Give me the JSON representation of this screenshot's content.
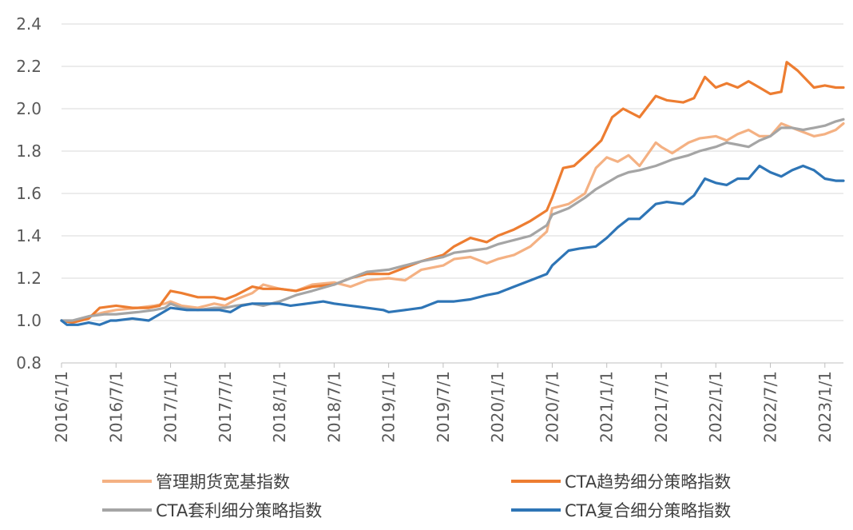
{
  "chart_data": {
    "type": "line",
    "title": "",
    "xlabel": "",
    "ylabel": "",
    "ylim": [
      0.8,
      2.4
    ],
    "yticks": [
      "0.8",
      "1.0",
      "1.2",
      "1.4",
      "1.6",
      "1.8",
      "2.0",
      "2.2",
      "2.4"
    ],
    "ytick_values": [
      0.8,
      1.0,
      1.2,
      1.4,
      1.6,
      1.8,
      2.0,
      2.2,
      2.4
    ],
    "xlim": [
      2016.0,
      2023.17
    ],
    "xticks": [
      "2016/1/1",
      "2016/7/1",
      "2017/1/1",
      "2017/7/1",
      "2018/1/1",
      "2018/7/1",
      "2019/1/1",
      "2019/7/1",
      "2020/1/1",
      "2020/7/1",
      "2021/1/1",
      "2021/7/1",
      "2022/1/1",
      "2022/7/1",
      "2023/1/1"
    ],
    "xtick_values": [
      2016.0,
      2016.5,
      2017.0,
      2017.5,
      2018.0,
      2018.5,
      2019.0,
      2019.5,
      2020.0,
      2020.5,
      2021.0,
      2021.5,
      2022.0,
      2022.5,
      2023.0
    ],
    "grid": "horizontal",
    "legend_position": "bottom",
    "series": [
      {
        "name": "管理期货宽基指数",
        "color": "#F4B183",
        "x": [
          2016.0,
          2016.1,
          2016.25,
          2016.4,
          2016.5,
          2016.7,
          2016.85,
          2016.95,
          2017.0,
          2017.1,
          2017.25,
          2017.4,
          2017.5,
          2017.6,
          2017.75,
          2017.85,
          2018.0,
          2018.15,
          2018.3,
          2018.5,
          2018.65,
          2018.8,
          2019.0,
          2019.15,
          2019.3,
          2019.5,
          2019.6,
          2019.75,
          2019.9,
          2020.0,
          2020.15,
          2020.3,
          2020.45,
          2020.5,
          2020.65,
          2020.8,
          2020.9,
          2021.0,
          2021.1,
          2021.2,
          2021.3,
          2021.45,
          2021.5,
          2021.6,
          2021.75,
          2021.85,
          2022.0,
          2022.1,
          2022.2,
          2022.3,
          2022.4,
          2022.5,
          2022.6,
          2022.7,
          2022.8,
          2022.9,
          2023.0,
          2023.1,
          2023.17
        ],
        "values": [
          1.0,
          0.99,
          1.02,
          1.04,
          1.05,
          1.06,
          1.07,
          1.08,
          1.09,
          1.07,
          1.06,
          1.08,
          1.07,
          1.1,
          1.13,
          1.17,
          1.15,
          1.14,
          1.17,
          1.18,
          1.16,
          1.19,
          1.2,
          1.19,
          1.24,
          1.26,
          1.29,
          1.3,
          1.27,
          1.29,
          1.31,
          1.35,
          1.42,
          1.53,
          1.55,
          1.6,
          1.72,
          1.77,
          1.75,
          1.78,
          1.73,
          1.84,
          1.82,
          1.79,
          1.84,
          1.86,
          1.87,
          1.85,
          1.88,
          1.9,
          1.87,
          1.87,
          1.93,
          1.91,
          1.89,
          1.87,
          1.88,
          1.9,
          1.93
        ]
      },
      {
        "name": "CTA趋势细分策略指数",
        "color": "#ED7D31",
        "x": [
          2016.0,
          2016.1,
          2016.25,
          2016.35,
          2016.5,
          2016.65,
          2016.8,
          2016.9,
          2017.0,
          2017.1,
          2017.25,
          2017.4,
          2017.5,
          2017.6,
          2017.75,
          2017.85,
          2018.0,
          2018.15,
          2018.3,
          2018.5,
          2018.65,
          2018.8,
          2019.0,
          2019.15,
          2019.3,
          2019.5,
          2019.6,
          2019.75,
          2019.9,
          2020.0,
          2020.15,
          2020.3,
          2020.45,
          2020.5,
          2020.6,
          2020.7,
          2020.85,
          2020.95,
          2021.05,
          2021.15,
          2021.3,
          2021.45,
          2021.55,
          2021.7,
          2021.8,
          2021.9,
          2022.0,
          2022.1,
          2022.2,
          2022.3,
          2022.4,
          2022.5,
          2022.6,
          2022.65,
          2022.75,
          2022.9,
          2023.0,
          2023.1,
          2023.17
        ],
        "values": [
          1.0,
          0.99,
          1.01,
          1.06,
          1.07,
          1.06,
          1.06,
          1.07,
          1.14,
          1.13,
          1.11,
          1.11,
          1.1,
          1.12,
          1.16,
          1.15,
          1.15,
          1.14,
          1.16,
          1.17,
          1.2,
          1.22,
          1.22,
          1.25,
          1.28,
          1.31,
          1.35,
          1.39,
          1.37,
          1.4,
          1.43,
          1.47,
          1.52,
          1.58,
          1.72,
          1.73,
          1.8,
          1.85,
          1.96,
          2.0,
          1.96,
          2.06,
          2.04,
          2.03,
          2.05,
          2.15,
          2.1,
          2.12,
          2.1,
          2.13,
          2.1,
          2.07,
          2.08,
          2.22,
          2.18,
          2.1,
          2.11,
          2.1,
          2.1
        ]
      },
      {
        "name": "CTA套利细分策略指数",
        "color": "#A5A5A5",
        "x": [
          2016.0,
          2016.1,
          2016.25,
          2016.4,
          2016.5,
          2016.7,
          2016.85,
          2016.95,
          2017.0,
          2017.1,
          2017.25,
          2017.4,
          2017.5,
          2017.6,
          2017.75,
          2017.85,
          2018.0,
          2018.15,
          2018.3,
          2018.5,
          2018.65,
          2018.8,
          2019.0,
          2019.15,
          2019.3,
          2019.5,
          2019.6,
          2019.75,
          2019.9,
          2020.0,
          2020.15,
          2020.3,
          2020.45,
          2020.5,
          2020.65,
          2020.8,
          2020.9,
          2021.0,
          2021.1,
          2021.2,
          2021.3,
          2021.45,
          2021.5,
          2021.6,
          2021.75,
          2021.85,
          2022.0,
          2022.1,
          2022.2,
          2022.3,
          2022.4,
          2022.5,
          2022.6,
          2022.7,
          2022.8,
          2022.9,
          2023.0,
          2023.1,
          2023.17
        ],
        "values": [
          1.0,
          1.0,
          1.02,
          1.03,
          1.03,
          1.04,
          1.05,
          1.06,
          1.08,
          1.06,
          1.05,
          1.06,
          1.06,
          1.07,
          1.08,
          1.07,
          1.09,
          1.12,
          1.14,
          1.17,
          1.2,
          1.23,
          1.24,
          1.26,
          1.28,
          1.3,
          1.32,
          1.33,
          1.34,
          1.36,
          1.38,
          1.4,
          1.45,
          1.5,
          1.53,
          1.58,
          1.62,
          1.65,
          1.68,
          1.7,
          1.71,
          1.73,
          1.74,
          1.76,
          1.78,
          1.8,
          1.82,
          1.84,
          1.83,
          1.82,
          1.85,
          1.87,
          1.91,
          1.91,
          1.9,
          1.91,
          1.92,
          1.94,
          1.95
        ]
      },
      {
        "name": "CTA复合细分策略指数",
        "color": "#2E75B6",
        "x": [
          2016.0,
          2016.05,
          2016.15,
          2016.25,
          2016.35,
          2016.45,
          2016.5,
          2016.65,
          2016.8,
          2016.9,
          2017.0,
          2017.15,
          2017.3,
          2017.45,
          2017.55,
          2017.65,
          2017.75,
          2017.9,
          2018.0,
          2018.1,
          2018.25,
          2018.4,
          2018.5,
          2018.65,
          2018.8,
          2018.95,
          2019.0,
          2019.15,
          2019.3,
          2019.45,
          2019.6,
          2019.75,
          2019.9,
          2020.0,
          2020.15,
          2020.3,
          2020.45,
          2020.5,
          2020.65,
          2020.75,
          2020.9,
          2021.0,
          2021.1,
          2021.2,
          2021.3,
          2021.45,
          2021.55,
          2021.7,
          2021.8,
          2021.9,
          2022.0,
          2022.1,
          2022.2,
          2022.3,
          2022.4,
          2022.5,
          2022.6,
          2022.7,
          2022.8,
          2022.9,
          2023.0,
          2023.1,
          2023.17
        ],
        "values": [
          1.0,
          0.98,
          0.98,
          0.99,
          0.98,
          1.0,
          1.0,
          1.01,
          1.0,
          1.03,
          1.06,
          1.05,
          1.05,
          1.05,
          1.04,
          1.07,
          1.08,
          1.08,
          1.08,
          1.07,
          1.08,
          1.09,
          1.08,
          1.07,
          1.06,
          1.05,
          1.04,
          1.05,
          1.06,
          1.09,
          1.09,
          1.1,
          1.12,
          1.13,
          1.16,
          1.19,
          1.22,
          1.26,
          1.33,
          1.34,
          1.35,
          1.39,
          1.44,
          1.48,
          1.48,
          1.55,
          1.56,
          1.55,
          1.59,
          1.67,
          1.65,
          1.64,
          1.67,
          1.67,
          1.73,
          1.7,
          1.68,
          1.71,
          1.73,
          1.71,
          1.67,
          1.66,
          1.66
        ]
      }
    ]
  }
}
